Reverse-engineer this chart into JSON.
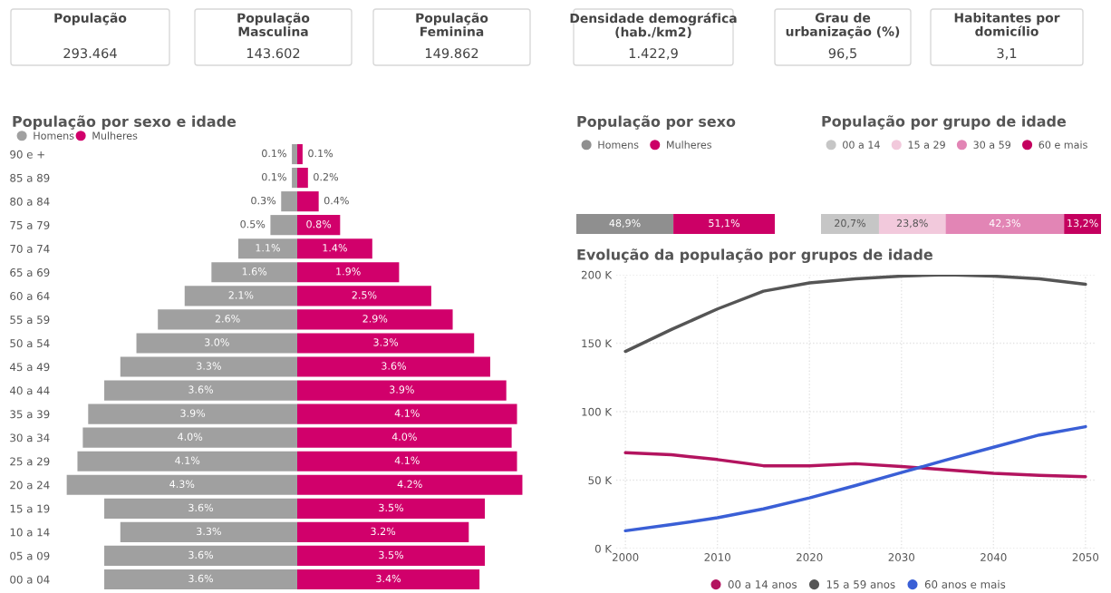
{
  "chart_data": [
    {
      "type": "other",
      "annotations": [
        "População\n293.464",
        "População\nMasculina\n143.602",
        "População\nFeminina\n149.862",
        "Densidade demográfica\n(hab./km2)\n1.422,9",
        "Grau de\nurbanização (%)\n96,5",
        "Habitantes por\ndomicílio\n3,1"
      ]
    },
    {
      "type": "bar",
      "orientation": "horizontal",
      "title": "População por sexo e idade",
      "legend": "top left",
      "tick_labels": "y",
      "categories": [
        "90 e +",
        "85 a 89",
        "80 a 84",
        "75 a 79",
        "70 a 74",
        "65 a 69",
        "60 a 64",
        "55 a 59",
        "50 a 54",
        "45 a 49",
        "40 a 44",
        "35 a 39",
        "30 a 34",
        "25 a 29",
        "20 a 24",
        "15 a 19",
        "10 a 14",
        "05 a 09",
        "00 a 04"
      ],
      "series": [
        {
          "name": "Homens",
          "color": "#a0a0a0",
          "values": [
            0.1,
            0.1,
            0.3,
            0.5,
            1.1,
            1.6,
            2.1,
            2.6,
            3.0,
            3.3,
            3.6,
            3.9,
            4.0,
            4.1,
            4.3,
            3.6,
            3.3,
            3.6,
            3.6
          ],
          "value_labels": [
            "0.1%",
            "0.1%",
            "0.3%",
            "0.5%",
            "1.1%",
            "1.6%",
            "2.1%",
            "2.6%",
            "3.0%",
            "3.3%",
            "3.6%",
            "3.9%",
            "4.0%",
            "4.1%",
            "4.3%",
            "3.6%",
            "3.3%",
            "3.6%",
            "3.6%"
          ]
        }
      ]
    },
    {
      "type": "bar",
      "orientation": "horizontal",
      "legend": "top left",
      "tick_labels": false,
      "categories": [
        null,
        null,
        null,
        null,
        null,
        null,
        null,
        null,
        null,
        null,
        null,
        null,
        null,
        null,
        null,
        null,
        null,
        null,
        null
      ],
      "series": [
        {
          "name": "Mulheres",
          "color": "#d1006b",
          "values": [
            0.1,
            0.2,
            0.4,
            0.8,
            1.4,
            1.9,
            2.5,
            2.9,
            3.3,
            3.6,
            3.9,
            4.1,
            4.0,
            4.1,
            4.2,
            3.5,
            3.2,
            3.5,
            3.4
          ],
          "value_labels": [
            "0.1%",
            "0.2%",
            "0.4%",
            "0.8%",
            "1.4%",
            "1.9%",
            "2.5%",
            "2.9%",
            "3.3%",
            "3.6%",
            "3.9%",
            "4.1%",
            "4.0%",
            "4.1%",
            "4.2%",
            "3.5%",
            "3.2%",
            "3.5%",
            "3.4%"
          ]
        }
      ]
    },
    {
      "type": "bar",
      "orientation": "horizontal",
      "stacked": true,
      "title": "População por sexo",
      "legend": "top left",
      "categories": [
        null
      ],
      "series": [
        {
          "name": "Homens",
          "color": "#8f8f8f",
          "values": [
            48.9
          ],
          "value_labels": [
            "48,9%"
          ]
        },
        {
          "name": "Mulheres",
          "color": "#cc0066",
          "values": [
            51.1
          ],
          "value_labels": [
            "51,1%"
          ]
        }
      ]
    },
    {
      "type": "bar",
      "orientation": "horizontal",
      "stacked": true,
      "title": "População por grupo de idade",
      "legend": "top left",
      "categories": [
        null
      ],
      "series": [
        {
          "name": "00 a 14",
          "color": "#c6c6c6",
          "values": [
            20.7
          ],
          "value_labels": [
            "20,7%"
          ]
        },
        {
          "name": "15 a 29",
          "color": "#f2c9dc",
          "values": [
            23.8
          ],
          "value_labels": [
            "23,8%"
          ]
        },
        {
          "name": "30 a 59",
          "color": "#e285b5",
          "values": [
            42.3
          ],
          "value_labels": [
            "42,3%"
          ]
        },
        {
          "name": "60 e mais",
          "color": "#c4005f",
          "values": [
            13.2
          ],
          "value_labels": [
            "13,2%"
          ]
        }
      ]
    },
    {
      "type": "line",
      "title": "Evolução da população por grupos de idade",
      "legend": "bottom",
      "grid": true,
      "marker": "none",
      "line_style": "solid",
      "x": [
        2000,
        2005,
        2010,
        2015,
        2020,
        2025,
        2030,
        2035,
        2040,
        2045,
        2050
      ],
      "xlim": [
        1999,
        2051
      ],
      "xticks": [
        2000,
        2010,
        2020,
        2030,
        2040,
        2050
      ],
      "ylim": [
        0,
        200
      ],
      "yticks": [
        {
          "value": 0,
          "label": "0 K"
        },
        {
          "value": 50,
          "label": "50 K"
        },
        {
          "value": 100,
          "label": "100 K"
        },
        {
          "value": 150,
          "label": "150 K"
        },
        {
          "value": 200,
          "label": "200 K"
        }
      ],
      "series": [
        {
          "name": "00 a 14 anos",
          "color": "#b3145f",
          "values": [
            70,
            68.5,
            65,
            60.5,
            60.5,
            62,
            60,
            57.5,
            55,
            53.5,
            52.5
          ]
        },
        {
          "name": "15 a 59 anos",
          "color": "#555555",
          "values": [
            144,
            160,
            175,
            188,
            194,
            197,
            199,
            200,
            199,
            197,
            193
          ]
        },
        {
          "name": "60 anos e mais",
          "color": "#3a5fd6",
          "values": [
            13,
            17.5,
            22.5,
            29,
            37,
            46,
            55.5,
            65,
            74,
            83,
            89
          ]
        }
      ]
    }
  ]
}
